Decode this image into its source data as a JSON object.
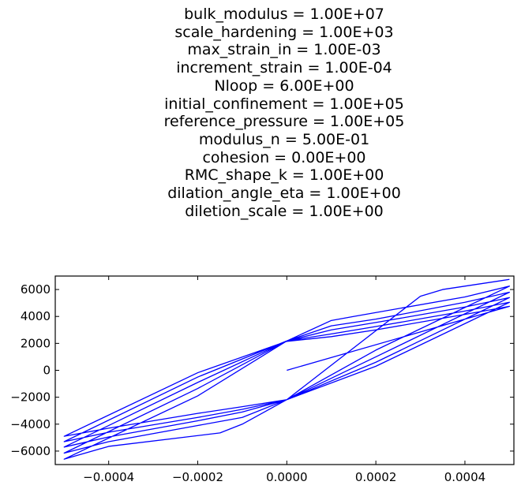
{
  "figure": {
    "title_lines": [
      "bulk_modulus = 1.00E+07",
      "scale_hardening = 1.00E+03",
      "max_strain_in = 1.00E-03",
      "increment_strain = 1.00E-04",
      "Nloop = 6.00E+00",
      "initial_confinement = 1.00E+05",
      "reference_pressure = 1.00E+05",
      "modulus_n = 5.00E-01",
      "cohesion = 0.00E+00",
      "RMC_shape_k = 1.00E+00",
      "dilation_angle_eta = 1.00E+00",
      "diletion_scale = 1.00E+00"
    ]
  },
  "chart_data": {
    "type": "line",
    "title": "",
    "xlabel": "",
    "ylabel": "",
    "xlim": [
      -0.00052,
      0.00051
    ],
    "ylim": [
      -7000,
      7000
    ],
    "grid": false,
    "line_color": "#0000ff",
    "x_ticks": [
      -0.0004,
      -0.0002,
      0.0,
      0.0002,
      0.0004
    ],
    "x_tick_labels": [
      "−0.0004",
      "−0.0002",
      "0.0000",
      "0.0002",
      "0.0004"
    ],
    "y_ticks": [
      -6000,
      -4000,
      -2000,
      0,
      2000,
      4000,
      6000
    ],
    "y_tick_labels": [
      "−6000",
      "−4000",
      "−2000",
      "0",
      "2000",
      "4000",
      "6000"
    ],
    "series": [
      {
        "points": [
          [
            0.0,
            0
          ],
          [
            0.0005,
            4750
          ],
          [
            0.0004,
            4150
          ],
          [
            0.0002,
            3000
          ],
          [
            0.0001,
            2500
          ],
          [
            0.0,
            2150
          ],
          [
            -0.0002,
            -180
          ],
          [
            -0.0005,
            -4900
          ],
          [
            -0.0004,
            -4300
          ],
          [
            -0.0002,
            -3200
          ],
          [
            -0.0001,
            -2700
          ],
          [
            0.0,
            -2180
          ],
          [
            0.0002,
            300
          ],
          [
            0.0005,
            5050
          ],
          [
            0.0004,
            4400
          ],
          [
            0.0002,
            3250
          ],
          [
            0.0001,
            2700
          ],
          [
            0.0,
            2180
          ],
          [
            -0.0002,
            -500
          ],
          [
            -0.0005,
            -5300
          ],
          [
            -0.0004,
            -4600
          ],
          [
            -0.0002,
            -3500
          ],
          [
            -0.0001,
            -2900
          ],
          [
            0.0,
            -2180
          ],
          [
            0.0002,
            600
          ],
          [
            0.0005,
            5400
          ],
          [
            0.0004,
            4700
          ],
          [
            0.0002,
            3550
          ],
          [
            0.0001,
            3000
          ],
          [
            0.0,
            2180
          ],
          [
            -0.0002,
            -900
          ],
          [
            -0.0005,
            -5700
          ],
          [
            -0.0004,
            -4950
          ],
          [
            -0.0002,
            -3750
          ],
          [
            -0.0001,
            -3100
          ],
          [
            0.0,
            -2180
          ],
          [
            0.0002,
            1000
          ],
          [
            0.0005,
            5800
          ],
          [
            0.0004,
            5050
          ],
          [
            0.0002,
            3800
          ],
          [
            0.0001,
            3300
          ],
          [
            0.0,
            2180
          ],
          [
            -0.0002,
            -1350
          ],
          [
            -0.0005,
            -6150
          ],
          [
            -0.0004,
            -5300
          ],
          [
            -0.0002,
            -4100
          ],
          [
            -0.0001,
            -3500
          ],
          [
            0.0,
            -2180
          ],
          [
            0.0002,
            1500
          ],
          [
            0.0005,
            6250
          ],
          [
            0.0004,
            5450
          ],
          [
            0.00015,
            4000
          ],
          [
            0.0001,
            3700
          ],
          [
            0.0,
            2180
          ],
          [
            -0.0002,
            -1900
          ],
          [
            -0.0005,
            -6600
          ],
          [
            -0.0004,
            -5650
          ],
          [
            -0.00015,
            -4650
          ],
          [
            -0.0001,
            -4000
          ],
          [
            0.0,
            -2180
          ],
          [
            0.0003,
            5500
          ],
          [
            0.00035,
            6000
          ],
          [
            0.0005,
            6750
          ]
        ]
      }
    ]
  }
}
